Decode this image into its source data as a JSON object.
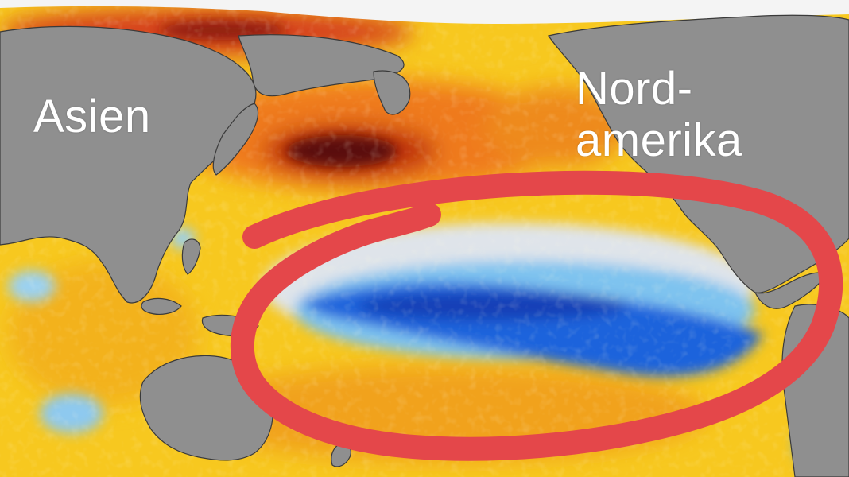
{
  "map": {
    "labels": {
      "asia": "Asien",
      "north_america_line1": "Nord-",
      "north_america_line2": "amerika"
    },
    "colors": {
      "land": "#8f8f8f",
      "ocean_warm": "#f7c81f",
      "ocean_hot": "#e2581a",
      "ocean_very_hot": "#5a0f07",
      "ocean_neutral": "#dfe4ea",
      "ocean_cool": "#7ec3ef",
      "ocean_cold": "#1f63dc",
      "highlight_circle": "#e4474a"
    },
    "highlight": {
      "shape": "hand-drawn ellipse",
      "region": "equatorial Pacific cold anomaly"
    }
  }
}
